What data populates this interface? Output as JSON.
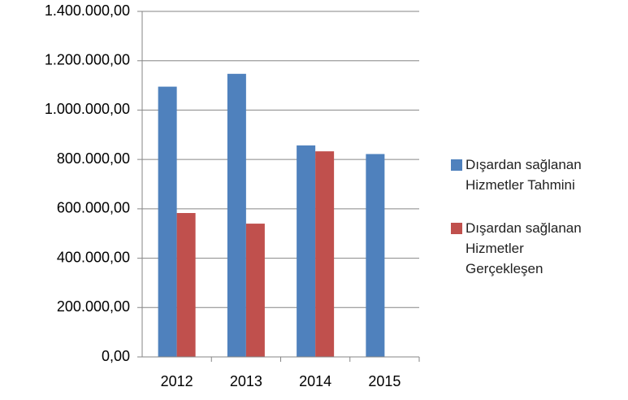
{
  "chart_data": {
    "type": "bar",
    "categories": [
      "2012",
      "2013",
      "2014",
      "2015"
    ],
    "series": [
      {
        "name": "Dışardan sağlanan Hizmetler Tahmini",
        "color": "#4f81bd",
        "values": [
          1095000,
          1147000,
          857000,
          822000
        ]
      },
      {
        "name": "Dışardan sağlanan Hizmetler Gerçekleşen",
        "color": "#c0504d",
        "values": [
          583000,
          540000,
          833000,
          null
        ]
      }
    ],
    "ylim": [
      0,
      1400000
    ],
    "yticks": [
      {
        "value": 0,
        "label": "0,00"
      },
      {
        "value": 200000,
        "label": "200.000,00"
      },
      {
        "value": 400000,
        "label": "400.000,00"
      },
      {
        "value": 600000,
        "label": "600.000,00"
      },
      {
        "value": 800000,
        "label": "800.000,00"
      },
      {
        "value": 1000000,
        "label": "1.000.000,00"
      },
      {
        "value": 1200000,
        "label": "1.200.000,00"
      },
      {
        "value": 1400000,
        "label": "1.400.000,00"
      }
    ],
    "grid": true,
    "legend": "right"
  }
}
